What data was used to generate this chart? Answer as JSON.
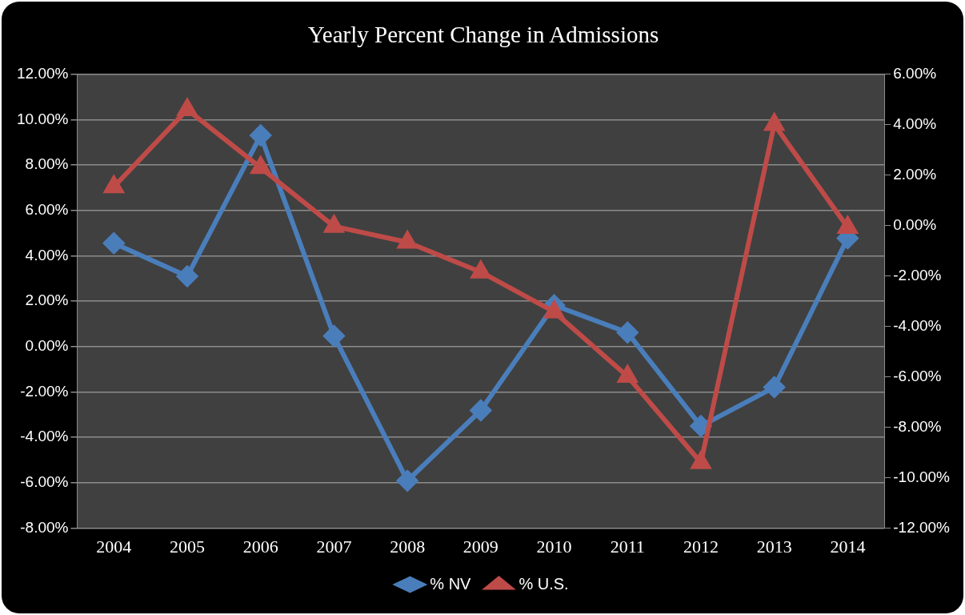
{
  "chart_data": {
    "type": "line",
    "title": "Yearly Percent Change in Admissions",
    "categories": [
      "2004",
      "2005",
      "2006",
      "2007",
      "2008",
      "2009",
      "2010",
      "2011",
      "2012",
      "2013",
      "2014"
    ],
    "series": [
      {
        "name": "% NV",
        "color": "#4a7ebb",
        "marker": "diamond",
        "values": [
          4.56,
          3.1,
          9.31,
          0.47,
          -5.91,
          -2.81,
          1.82,
          0.62,
          -3.5,
          -1.79,
          4.78
        ]
      },
      {
        "name": "% U.S.",
        "color": "#be4b48",
        "marker": "triangle",
        "axis": "y2",
        "values": [
          1.54,
          4.6,
          2.3,
          -0.03,
          -0.66,
          -1.84,
          -3.42,
          -5.98,
          -9.4,
          4.01,
          -0.07
        ]
      }
    ],
    "ylim": [
      -8,
      12
    ],
    "yticks": [
      {
        "value": -8,
        "label": "-8.00%"
      },
      {
        "value": -6,
        "label": "-6.00%"
      },
      {
        "value": -4,
        "label": "-4.00%"
      },
      {
        "value": -2,
        "label": "-2.00%"
      },
      {
        "value": 0,
        "label": "0.00%"
      },
      {
        "value": 2,
        "label": "2.00%"
      },
      {
        "value": 4,
        "label": "4.00%"
      },
      {
        "value": 6,
        "label": "6.00%"
      },
      {
        "value": 8,
        "label": "8.00%"
      },
      {
        "value": 10,
        "label": "10.00%"
      },
      {
        "value": 12,
        "label": "12.00%"
      }
    ],
    "y2lim": [
      -12,
      6
    ],
    "y2ticks": [
      {
        "value": -12,
        "label": "-12.00%"
      },
      {
        "value": -10,
        "label": "-10.00%"
      },
      {
        "value": -8,
        "label": "-8.00%"
      },
      {
        "value": -6,
        "label": "-6.00%"
      },
      {
        "value": -4,
        "label": "-4.00%"
      },
      {
        "value": -2,
        "label": "-2.00%"
      },
      {
        "value": 0,
        "label": "0.00%"
      },
      {
        "value": 2,
        "label": "2.00%"
      },
      {
        "value": 4,
        "label": "4.00%"
      },
      {
        "value": 6,
        "label": "6.00%"
      }
    ],
    "grid": "y",
    "legend": "bottom",
    "line_style": "solid"
  }
}
